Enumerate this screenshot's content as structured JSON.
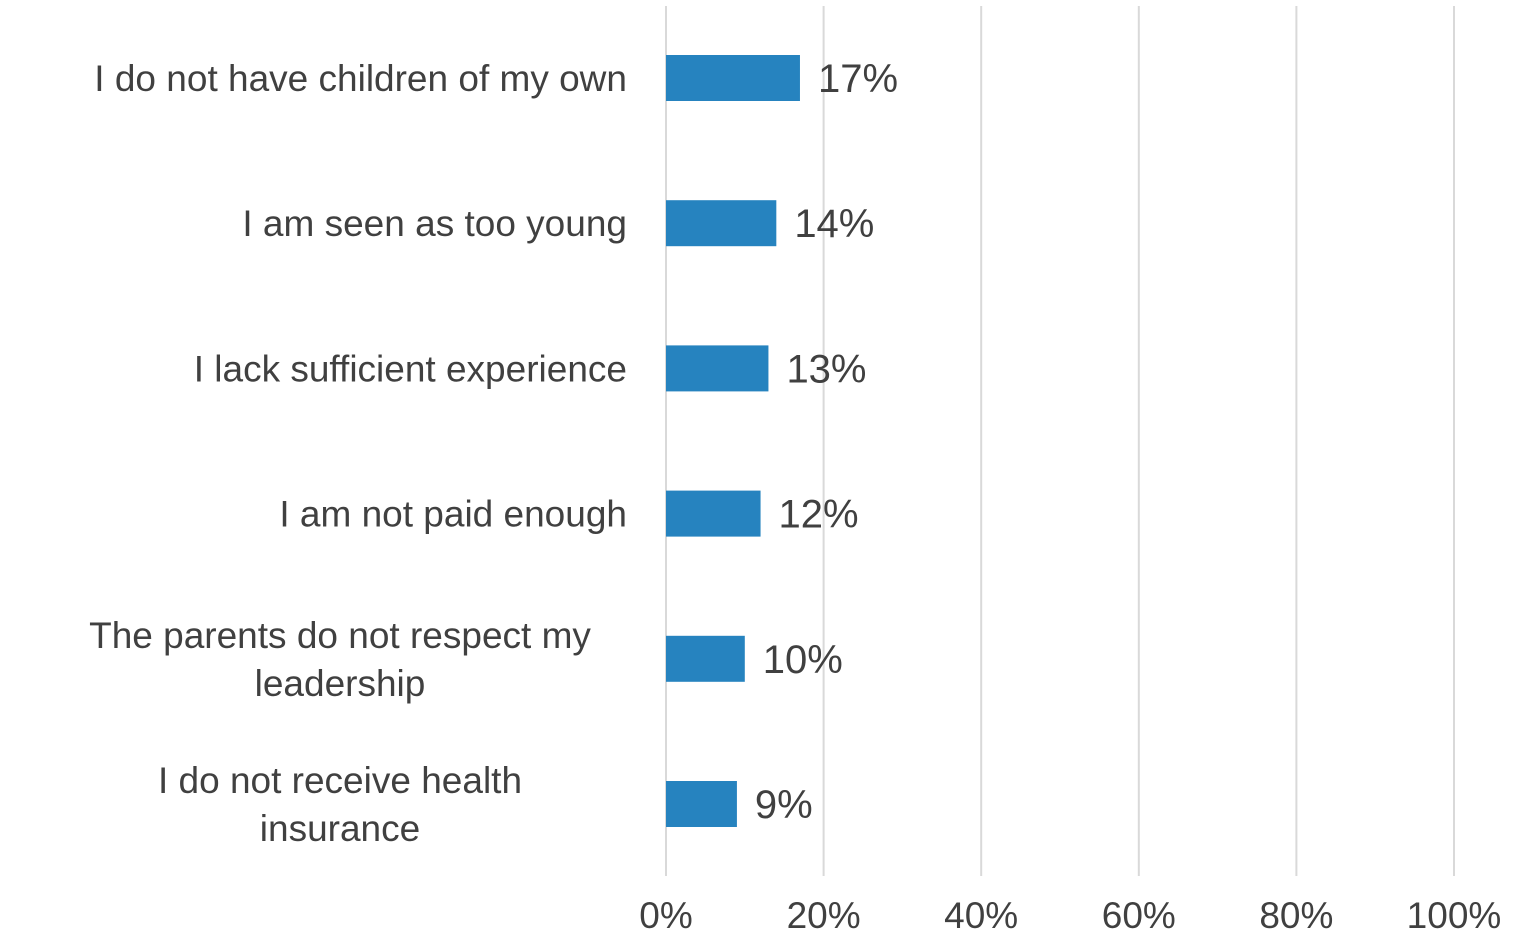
{
  "chart_data": {
    "type": "bar",
    "orientation": "horizontal",
    "categories": [
      "I do not have children of my own",
      "I am seen as too young",
      "I lack sufficient experience",
      "I am not paid enough",
      "The parents do not respect my leadership",
      "I do not receive health insurance"
    ],
    "values": [
      17,
      14,
      13,
      12,
      10,
      9
    ],
    "data_labels": [
      "17%",
      "14%",
      "13%",
      "12%",
      "10%",
      "9%"
    ],
    "xlim": [
      0,
      100
    ],
    "ticks": [
      0,
      20,
      40,
      60,
      80,
      100
    ],
    "tick_labels": [
      "0%",
      "20%",
      "40%",
      "60%",
      "80%",
      "100%"
    ],
    "grid": true,
    "legend": "none",
    "bar_color": "#2683BF",
    "grid_color": "#D9D9D9",
    "text_color": "#404040"
  }
}
